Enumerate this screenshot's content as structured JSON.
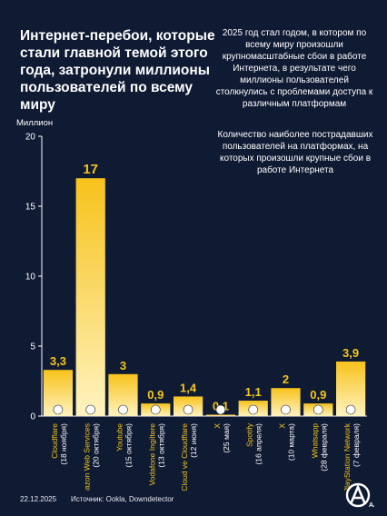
{
  "title": "Интернет-перебои, которые стали главной темой этого года, затронули миллионы пользователей по всему миру",
  "intro": "2025 год стал годом, в котором по всему миру произошли крупномасштабные сбои в работе Интернета, в результате чего миллионы пользователей столкнулись с проблемами доступа к различным платформам",
  "note": "Количество наиболее пострадавших пользователей на платформах, на которых произошли крупные сбои в работе Интернета",
  "footer": {
    "date": "22.12.2025",
    "source": "Источник: Ookla, Downdetector"
  },
  "logo_text": "AA",
  "colors": {
    "background": "#0f1a33",
    "bar_top": "#f7c21b",
    "bar_bottom": "#fff3c0",
    "value_label": "#f5c518",
    "axis": "#ffffff",
    "grid": "#7e879c"
  },
  "chart_data": {
    "type": "bar",
    "ylabel": "Миллион",
    "ylim": [
      0,
      20
    ],
    "yticks": [
      0,
      5,
      10,
      15,
      20
    ],
    "grid": false,
    "categories": [
      {
        "name": "Cloudflare",
        "date": "(18 ноября)",
        "icon": "cloudflare-icon"
      },
      {
        "name": "Amazon Web Services",
        "date": "(20 октября)",
        "icon": "aws-icon"
      },
      {
        "name": "Youtube",
        "date": "(15 октября)",
        "icon": "youtube-icon"
      },
      {
        "name": "Vodafone Ingiltere",
        "date": "(13 октября)",
        "icon": "vodafone-icon"
      },
      {
        "name": "Google Cloud ve Cloudflare",
        "date": "(12 июня)",
        "icon": "google-icon"
      },
      {
        "name": "X",
        "date": "(25 мая)",
        "icon": "x-icon"
      },
      {
        "name": "Spotify",
        "date": "(16 апреля)",
        "icon": "spotify-icon"
      },
      {
        "name": "X",
        "date": "(10 марта)",
        "icon": "x-icon"
      },
      {
        "name": "Whatsapp",
        "date": "(28 февраля)",
        "icon": "whatsapp-icon"
      },
      {
        "name": "PlayStation Network",
        "date": "(7 февраля)",
        "icon": "playstation-icon"
      }
    ],
    "values": [
      3.3,
      17,
      3,
      0.9,
      1.4,
      0.1,
      1.1,
      2,
      0.9,
      3.9
    ],
    "value_labels": [
      "3,3",
      "17",
      "3",
      "0,9",
      "1,4",
      "0,1",
      "1,1",
      "2",
      "0,9",
      "3,9"
    ]
  }
}
